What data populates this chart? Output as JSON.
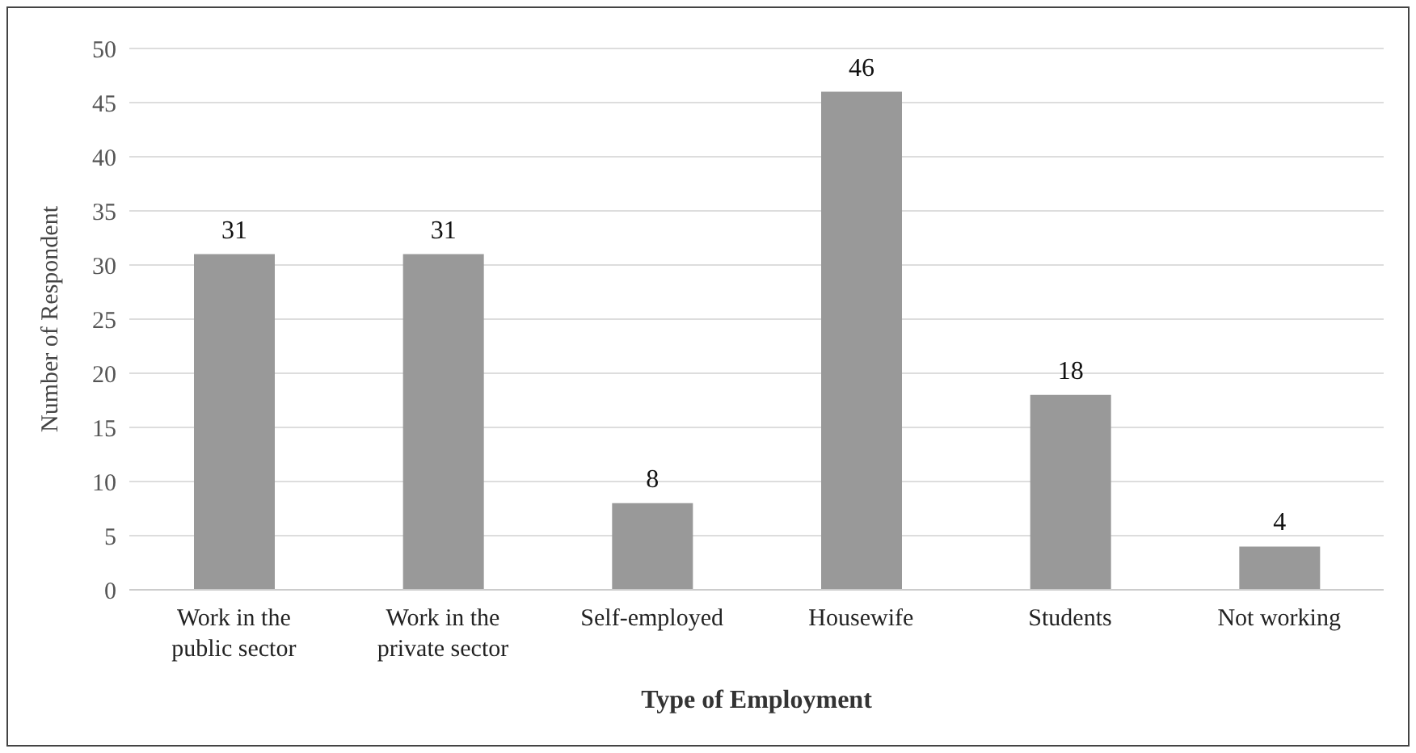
{
  "chart_data": {
    "type": "bar",
    "xlabel": "Type of Employment",
    "ylabel": "Number of Respondent",
    "categories": [
      "Work in the public sector",
      "Work in the private sector",
      "Self-employed",
      "Housewife",
      "Students",
      "Not working"
    ],
    "values": [
      31,
      31,
      8,
      46,
      18,
      4
    ],
    "color": "#999999",
    "ylim": [
      0,
      50
    ],
    "yticks": [
      0,
      5,
      10,
      15,
      20,
      25,
      30,
      35,
      40,
      45,
      50
    ],
    "grid": "y",
    "data_labels": true
  }
}
